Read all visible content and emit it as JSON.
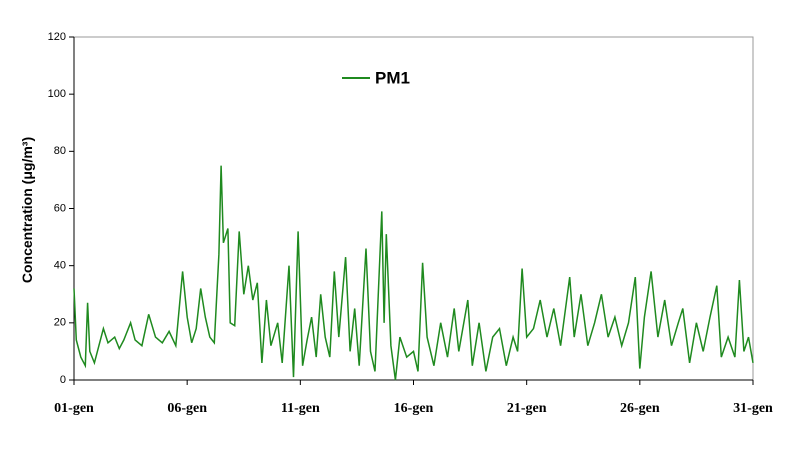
{
  "chart_data": {
    "type": "line",
    "y_label": "Concentration (μg/m³)",
    "x": [
      1.0,
      1.1,
      1.3,
      1.5,
      1.6,
      1.7,
      1.9,
      2.1,
      2.3,
      2.5,
      2.8,
      3.0,
      3.2,
      3.5,
      3.7,
      4.0,
      4.3,
      4.6,
      4.9,
      5.2,
      5.5,
      5.8,
      6.0,
      6.2,
      6.4,
      6.6,
      6.8,
      7.0,
      7.2,
      7.4,
      7.5,
      7.6,
      7.8,
      7.9,
      8.1,
      8.3,
      8.5,
      8.7,
      8.9,
      9.1,
      9.3,
      9.5,
      9.7,
      10.0,
      10.2,
      10.5,
      10.7,
      10.9,
      11.1,
      11.3,
      11.5,
      11.7,
      11.9,
      12.1,
      12.3,
      12.5,
      12.7,
      13.0,
      13.2,
      13.4,
      13.6,
      13.9,
      14.1,
      14.3,
      14.6,
      14.7,
      14.8,
      15.0,
      15.2,
      15.4,
      15.7,
      16.0,
      16.2,
      16.4,
      16.6,
      16.9,
      17.2,
      17.5,
      17.8,
      18.0,
      18.4,
      18.6,
      18.9,
      19.2,
      19.5,
      19.8,
      20.1,
      20.4,
      20.6,
      20.8,
      21.0,
      21.3,
      21.6,
      21.9,
      22.2,
      22.5,
      22.9,
      23.1,
      23.4,
      23.7,
      24.0,
      24.3,
      24.6,
      24.9,
      25.2,
      25.5,
      25.8,
      26.0,
      26.2,
      26.5,
      26.8,
      27.1,
      27.4,
      27.7,
      27.9,
      28.2,
      28.5,
      28.8,
      29.1,
      29.4,
      29.6,
      29.9,
      30.2,
      30.4,
      30.6,
      30.8,
      31.0
    ],
    "series": [
      {
        "name": "PM1",
        "color": "#1f8a1f",
        "values": [
          32,
          14,
          8,
          5,
          27,
          10,
          6,
          12,
          18,
          13,
          15,
          11,
          14,
          20,
          14,
          12,
          23,
          15,
          13,
          17,
          12,
          38,
          22,
          13,
          18,
          32,
          22,
          15,
          13,
          44,
          75,
          48,
          53,
          20,
          19,
          52,
          30,
          40,
          28,
          34,
          6,
          28,
          12,
          20,
          6,
          40,
          1,
          52,
          5,
          14,
          22,
          8,
          30,
          15,
          8,
          38,
          15,
          43,
          10,
          25,
          5,
          46,
          10,
          3,
          59,
          20,
          51,
          12,
          0,
          15,
          8,
          10,
          3,
          41,
          15,
          5,
          20,
          8,
          25,
          10,
          28,
          5,
          20,
          3,
          15,
          18,
          5,
          15,
          10,
          39,
          15,
          18,
          28,
          15,
          25,
          12,
          36,
          15,
          30,
          12,
          20,
          30,
          15,
          22,
          12,
          20,
          36,
          4,
          22,
          38,
          15,
          28,
          12,
          20,
          25,
          6,
          20,
          10,
          22,
          33,
          8,
          15,
          8,
          35,
          10,
          15,
          6
        ]
      }
    ],
    "xlim": [
      1,
      31
    ],
    "xticks": [
      {
        "value": 1,
        "label": "01-gen"
      },
      {
        "value": 6,
        "label": "06-gen"
      },
      {
        "value": 11,
        "label": "11-gen"
      },
      {
        "value": 16,
        "label": "16-gen"
      },
      {
        "value": 21,
        "label": "21-gen"
      },
      {
        "value": 26,
        "label": "26-gen"
      },
      {
        "value": 31,
        "label": "31-gen"
      }
    ],
    "ylim": [
      0,
      120
    ],
    "yticks": [
      0,
      20,
      40,
      60,
      80,
      100,
      120
    ]
  }
}
